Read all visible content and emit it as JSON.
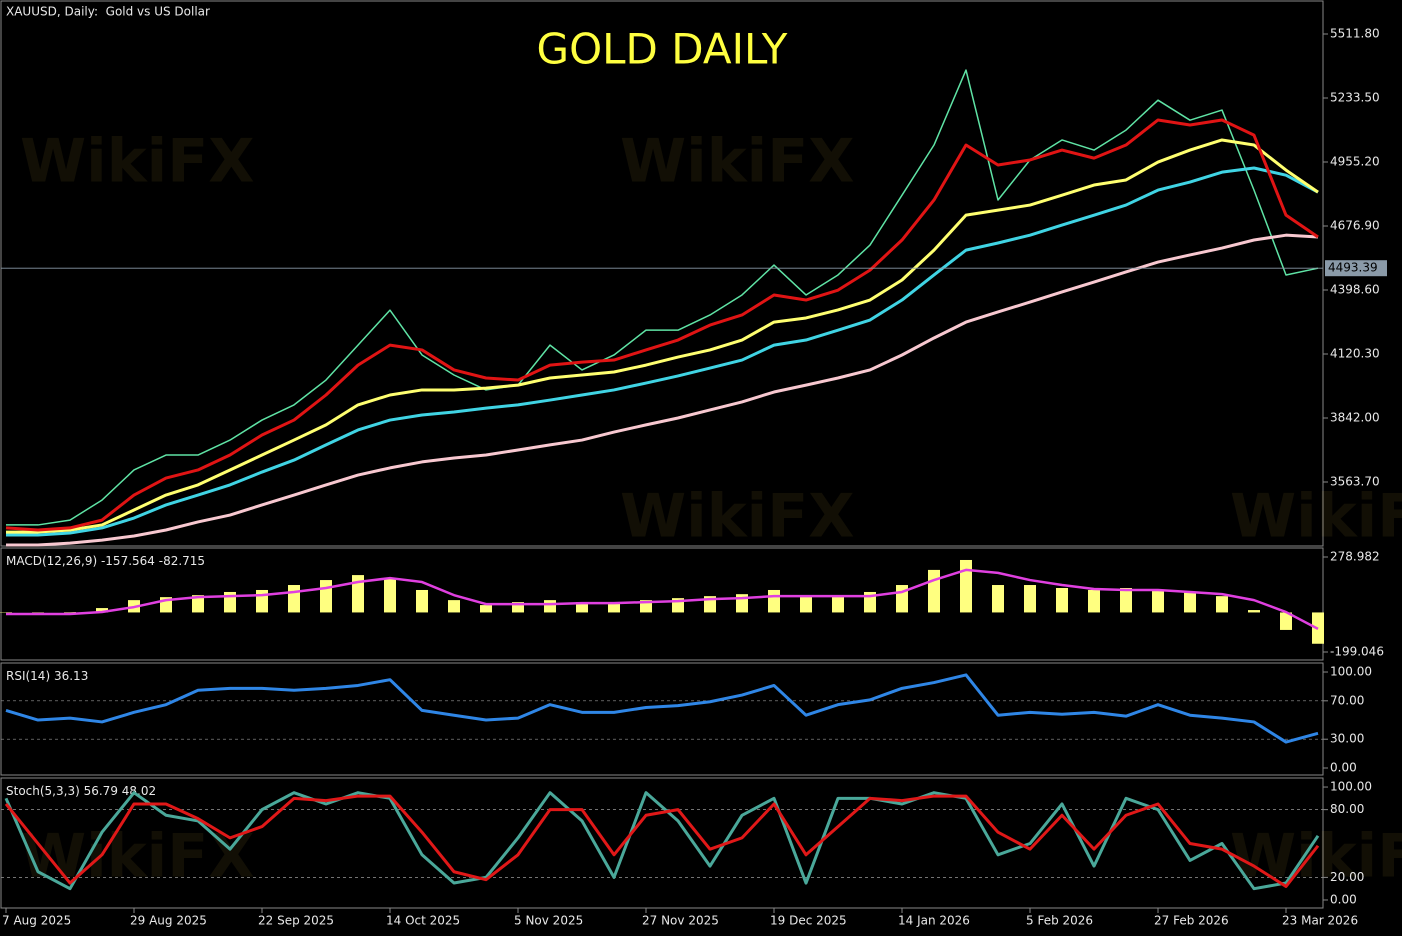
{
  "chart_data": [
    {
      "type": "line",
      "title": "XAUUSD, Daily:  Gold vs US Dollar",
      "annotation": "GOLD DAILY",
      "watermark": "WikiFX",
      "categories": [
        "7 Aug 2025",
        null,
        null,
        null,
        "29 Aug 2025",
        null,
        null,
        null,
        "22 Sep 2025",
        null,
        null,
        null,
        "14 Oct 2025",
        null,
        null,
        null,
        "5 Nov 2025",
        null,
        null,
        null,
        "27 Nov 2025",
        null,
        null,
        null,
        "19 Dec 2025",
        null,
        null,
        null,
        "14 Jan 2026",
        null,
        null,
        null,
        "5 Feb 2026",
        null,
        null,
        null,
        "27 Feb 2026",
        null,
        null,
        null,
        "23 Mar 2026",
        null
      ],
      "series": [
        {
          "color": "#5fe3a5",
          "width": 1.5,
          "values": [
            3377,
            3377,
            3398,
            3485,
            3616,
            3681,
            3681,
            3746,
            3833,
            3899,
            4007,
            4159,
            4311,
            4116,
            4029,
            3964,
            3985,
            4159,
            4051,
            4116,
            4224,
            4224,
            4290,
            4377,
            4507,
            4377,
            4464,
            4594,
            4811,
            5029,
            5355,
            4790,
            4964,
            5051,
            5007,
            5094,
            5224,
            5137,
            5181,
            4833,
            4464,
            4493.39
          ]
        },
        {
          "color": "#f8c8d0",
          "width": 3,
          "values": [
            3290,
            3290,
            3298,
            3311,
            3329,
            3355,
            3390,
            3420,
            3464,
            3507,
            3551,
            3594,
            3625,
            3651,
            3668,
            3681,
            3703,
            3725,
            3746,
            3781,
            3812,
            3842,
            3877,
            3912,
            3955,
            3985,
            4016,
            4051,
            4116,
            4190,
            4259,
            4303,
            4346,
            4390,
            4433,
            4477,
            4520,
            4551,
            4581,
            4616,
            4637,
            4629
          ]
        },
        {
          "color": "#40d4e4",
          "width": 3,
          "values": [
            3333,
            3333,
            3342,
            3364,
            3407,
            3464,
            3507,
            3551,
            3607,
            3659,
            3725,
            3790,
            3833,
            3855,
            3868,
            3885,
            3899,
            3920,
            3942,
            3964,
            3994,
            4025,
            4059,
            4094,
            4159,
            4181,
            4224,
            4268,
            4355,
            4464,
            4572,
            4603,
            4637,
            4681,
            4724,
            4768,
            4833,
            4868,
            4911,
            4929,
            4898,
            4824
          ]
        },
        {
          "color": "#ffff70",
          "width": 3,
          "values": [
            3346,
            3346,
            3355,
            3377,
            3442,
            3507,
            3551,
            3616,
            3681,
            3746,
            3812,
            3899,
            3942,
            3964,
            3964,
            3972,
            3985,
            4016,
            4029,
            4042,
            4072,
            4107,
            4138,
            4181,
            4259,
            4277,
            4312,
            4355,
            4442,
            4572,
            4724,
            4746,
            4768,
            4811,
            4855,
            4877,
            4955,
            5007,
            5051,
            5029,
            4920,
            4824
          ]
        },
        {
          "color": "#e01414",
          "width": 3,
          "values": [
            3364,
            3355,
            3364,
            3398,
            3507,
            3581,
            3616,
            3681,
            3768,
            3833,
            3942,
            4072,
            4159,
            4138,
            4051,
            4016,
            4007,
            4072,
            4085,
            4094,
            4138,
            4181,
            4246,
            4290,
            4377,
            4355,
            4398,
            4485,
            4616,
            4790,
            5029,
            4942,
            4964,
            5007,
            4972,
            5029,
            5138,
            5116,
            5138,
            5072,
            4724,
            4629
          ]
        }
      ],
      "ylim": [
        3285.4,
        5650.95
      ],
      "yticks": [
        {
          "value": 3563.7,
          "label": "3563.70"
        },
        {
          "value": 3842,
          "label": "3842.00"
        },
        {
          "value": 4120.3,
          "label": "4120.30"
        },
        {
          "value": 4398.6,
          "label": "4398.60"
        },
        {
          "value": 4676.9,
          "label": "4676.90"
        },
        {
          "value": 4955.2,
          "label": "4955.20"
        },
        {
          "value": 5233.5,
          "label": "5233.50"
        },
        {
          "value": 5511.8,
          "label": "5511.80"
        }
      ],
      "grid": false
    },
    {
      "type": "bar",
      "title": "MACD(12,26,9)",
      "series": [
        {
          "kind": "bar",
          "color": "#ffff80",
          "values": [
            2,
            -3,
            2,
            22,
            62,
            77,
            87,
            103,
            113,
            138,
            163,
            188,
            173,
            113,
            62,
            37,
            52,
            62,
            52,
            52,
            62,
            72,
            82,
            92,
            113,
            87,
            87,
            103,
            138,
            214,
            264,
            138,
            138,
            123,
            113,
            123,
            113,
            103,
            82,
            12,
            -88,
            -157.564
          ]
        },
        {
          "kind": "line",
          "color": "#e040e0",
          "width": 2.5,
          "values": [
            -8,
            -8,
            -8,
            2,
            27,
            62,
            77,
            82,
            87,
            103,
            123,
            153,
            173,
            153,
            87,
            42,
            42,
            42,
            47,
            47,
            52,
            57,
            67,
            72,
            82,
            82,
            82,
            82,
            103,
            163,
            214,
            199,
            163,
            138,
            118,
            113,
            113,
            103,
            92,
            62,
            2,
            -82.715
          ]
        }
      ],
      "ylim": [
        -239.3,
        324.27
      ],
      "yticks": [
        -199.046,
        278.982
      ],
      "grid": false
    },
    {
      "type": "line",
      "title": "RSI(14)",
      "series": [
        {
          "color": "#2f86e6",
          "width": 3,
          "values": [
            60,
            50,
            52,
            48,
            58,
            66,
            81,
            83,
            83,
            81,
            83,
            86,
            92,
            60,
            55,
            50,
            52,
            66,
            58,
            58,
            63,
            65,
            69,
            76,
            86,
            55,
            66,
            71,
            83,
            89,
            97,
            55,
            58,
            56,
            58,
            54,
            66,
            55,
            52,
            48,
            27,
            36.13
          ]
        }
      ],
      "ylim": [
        -7.3,
        109.4
      ],
      "yticks": [
        {
          "value": 0,
          "label": "0.00"
        },
        {
          "value": 30,
          "label": "30.00"
        },
        {
          "value": 70,
          "label": "70.00"
        },
        {
          "value": 100,
          "label": "100.00"
        }
      ],
      "grid": true
    },
    {
      "type": "line",
      "title": "Stoch(5,3,3)",
      "series": [
        {
          "color": "#4aa89a",
          "width": 3,
          "values": [
            90,
            25,
            10,
            60,
            95,
            75,
            70,
            45,
            80,
            95,
            85,
            95,
            90,
            40,
            15,
            20,
            55,
            95,
            70,
            20,
            95,
            70,
            30,
            75,
            90,
            15,
            90,
            90,
            85,
            95,
            90,
            40,
            50,
            85,
            30,
            90,
            80,
            35,
            50,
            10,
            15,
            56.79
          ]
        },
        {
          "color": "#e01818",
          "width": 3,
          "values": [
            85,
            50,
            15,
            40,
            85,
            85,
            72,
            55,
            65,
            90,
            88,
            92,
            92,
            60,
            25,
            18,
            40,
            80,
            80,
            40,
            75,
            80,
            45,
            55,
            85,
            40,
            65,
            90,
            88,
            92,
            92,
            60,
            45,
            75,
            45,
            75,
            85,
            50,
            45,
            30,
            12,
            48.02
          ]
        }
      ],
      "ylim": [
        -7.1,
        108
      ],
      "yticks": [
        {
          "value": 0,
          "label": "0.00"
        },
        {
          "value": 20,
          "label": "20.00"
        },
        {
          "value": 80,
          "label": "80.00"
        },
        {
          "value": 100,
          "label": "100.00"
        }
      ],
      "grid": true
    }
  ]
}
